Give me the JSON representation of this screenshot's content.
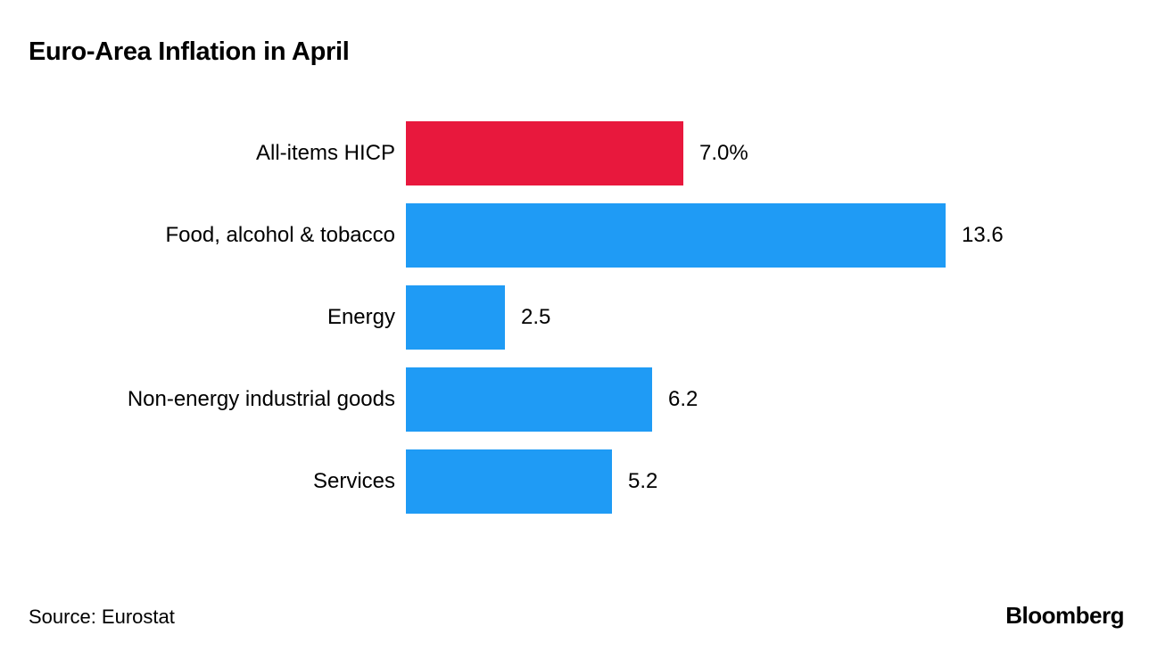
{
  "title": "Euro-Area Inflation in April",
  "source": "Source: Eurostat",
  "brand": "Bloomberg",
  "colors": {
    "highlight": "#e8183d",
    "default": "#1f9bf5",
    "text": "#000000",
    "background": "#ffffff"
  },
  "chart_data": {
    "type": "bar",
    "orientation": "horizontal",
    "title": "Euro-Area Inflation in April",
    "categories": [
      "All-items HICP",
      "Food, alcohol & tobacco",
      "Energy",
      "Non-energy industrial goods",
      "Services"
    ],
    "values": [
      7.0,
      13.6,
      2.5,
      6.2,
      5.2
    ],
    "value_labels": [
      "7.0%",
      "13.6",
      "2.5",
      "6.2",
      "5.2"
    ],
    "bar_colors": [
      "highlight",
      "default",
      "default",
      "default",
      "default"
    ],
    "xlabel": "",
    "ylabel": "",
    "xlim": [
      0,
      13.6
    ],
    "grid": false,
    "legend": "none",
    "source": "Source: Eurostat"
  }
}
